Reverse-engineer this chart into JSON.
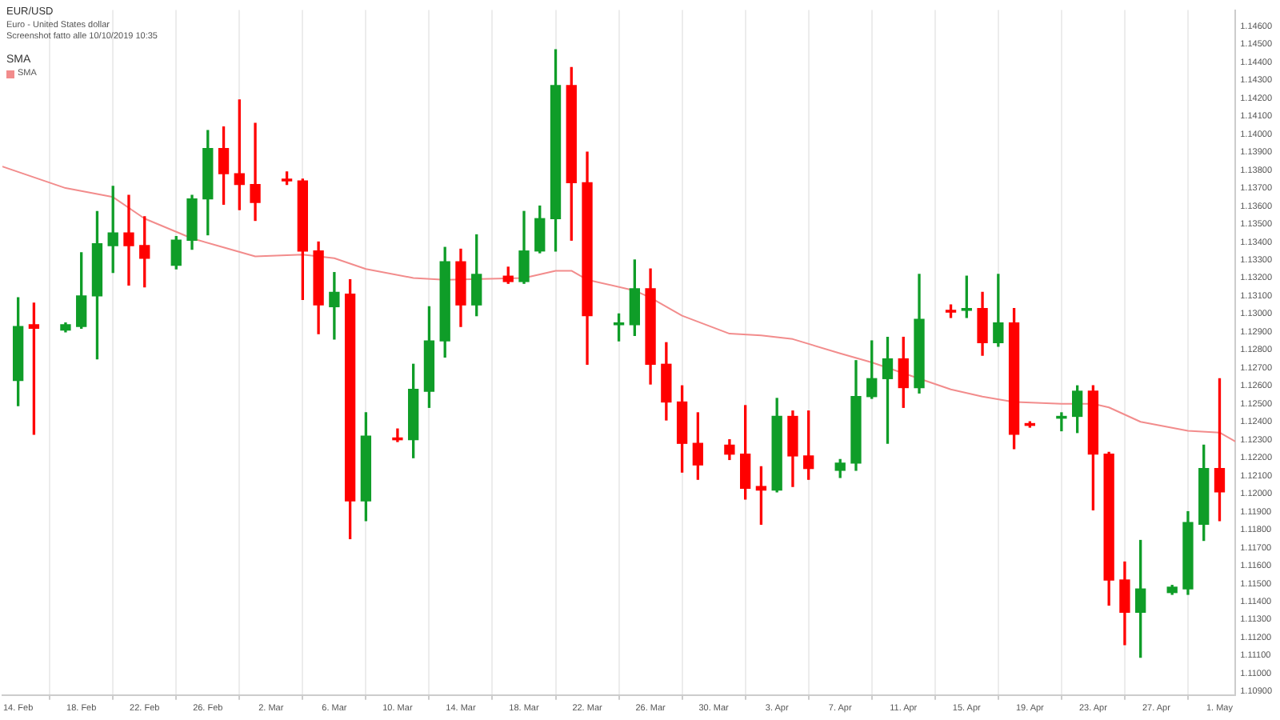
{
  "chart_data": {
    "type": "candlestick",
    "title": "EUR/USD",
    "subtitle": "Euro - United States dollar",
    "annotations": [
      "Screenshot fatto alle 10/10/2019 10:35"
    ],
    "legend_title": "SMA",
    "legend": "top left",
    "grid": "x",
    "marker": "none",
    "xlim": [
      "2019-02-13",
      "2019-05-02"
    ],
    "xticks": [
      {
        "value": "2019-02-14",
        "label": "14. Feb"
      },
      {
        "value": "2019-02-18",
        "label": "18. Feb"
      },
      {
        "value": "2019-02-22",
        "label": "22. Feb"
      },
      {
        "value": "2019-02-26",
        "label": "26. Feb"
      },
      {
        "value": "2019-03-02",
        "label": "2. Mar"
      },
      {
        "value": "2019-03-06",
        "label": "6. Mar"
      },
      {
        "value": "2019-03-10",
        "label": "10. Mar"
      },
      {
        "value": "2019-03-14",
        "label": "14. Mar"
      },
      {
        "value": "2019-03-18",
        "label": "18. Mar"
      },
      {
        "value": "2019-03-22",
        "label": "22. Mar"
      },
      {
        "value": "2019-03-26",
        "label": "26. Mar"
      },
      {
        "value": "2019-03-30",
        "label": "30. Mar"
      },
      {
        "value": "2019-04-03",
        "label": "3. Apr"
      },
      {
        "value": "2019-04-07",
        "label": "7. Apr"
      },
      {
        "value": "2019-04-11",
        "label": "11. Apr"
      },
      {
        "value": "2019-04-15",
        "label": "15. Apr"
      },
      {
        "value": "2019-04-19",
        "label": "19. Apr"
      },
      {
        "value": "2019-04-23",
        "label": "23. Apr"
      },
      {
        "value": "2019-04-27",
        "label": "27. Apr"
      },
      {
        "value": "2019-05-01",
        "label": "1. May"
      }
    ],
    "ylim": [
      1.1088,
      1.1469
    ],
    "yticks": [
      {
        "value": 1.109,
        "label": "1.10900"
      },
      {
        "value": 1.11,
        "label": "1.11000"
      },
      {
        "value": 1.111,
        "label": "1.11100"
      },
      {
        "value": 1.112,
        "label": "1.11200"
      },
      {
        "value": 1.113,
        "label": "1.11300"
      },
      {
        "value": 1.114,
        "label": "1.11400"
      },
      {
        "value": 1.115,
        "label": "1.11500"
      },
      {
        "value": 1.116,
        "label": "1.11600"
      },
      {
        "value": 1.117,
        "label": "1.11700"
      },
      {
        "value": 1.118,
        "label": "1.11800"
      },
      {
        "value": 1.119,
        "label": "1.11900"
      },
      {
        "value": 1.12,
        "label": "1.12000"
      },
      {
        "value": 1.121,
        "label": "1.12100"
      },
      {
        "value": 1.122,
        "label": "1.12200"
      },
      {
        "value": 1.123,
        "label": "1.12300"
      },
      {
        "value": 1.124,
        "label": "1.12400"
      },
      {
        "value": 1.125,
        "label": "1.12500"
      },
      {
        "value": 1.126,
        "label": "1.12600"
      },
      {
        "value": 1.127,
        "label": "1.12700"
      },
      {
        "value": 1.128,
        "label": "1.12800"
      },
      {
        "value": 1.129,
        "label": "1.12900"
      },
      {
        "value": 1.13,
        "label": "1.13000"
      },
      {
        "value": 1.131,
        "label": "1.13100"
      },
      {
        "value": 1.132,
        "label": "1.13200"
      },
      {
        "value": 1.133,
        "label": "1.13300"
      },
      {
        "value": 1.134,
        "label": "1.13400"
      },
      {
        "value": 1.135,
        "label": "1.13500"
      },
      {
        "value": 1.136,
        "label": "1.13600"
      },
      {
        "value": 1.137,
        "label": "1.13700"
      },
      {
        "value": 1.138,
        "label": "1.13800"
      },
      {
        "value": 1.139,
        "label": "1.13900"
      },
      {
        "value": 1.14,
        "label": "1.14000"
      },
      {
        "value": 1.141,
        "label": "1.14100"
      },
      {
        "value": 1.142,
        "label": "1.14200"
      },
      {
        "value": 1.143,
        "label": "1.14300"
      },
      {
        "value": 1.144,
        "label": "1.14400"
      },
      {
        "value": 1.145,
        "label": "1.14500"
      },
      {
        "value": 1.146,
        "label": "1.14600"
      }
    ],
    "series": [
      {
        "type": "line",
        "name": "SMA",
        "color": "#f28c8c",
        "x": [
          "2019-02-13",
          "2019-02-17",
          "2019-02-20",
          "2019-02-22",
          "2019-02-25",
          "2019-02-27",
          "2019-03-01",
          "2019-03-04",
          "2019-03-06",
          "2019-03-08",
          "2019-03-11",
          "2019-03-13",
          "2019-03-18",
          "2019-03-20",
          "2019-03-21",
          "2019-03-22",
          "2019-03-25",
          "2019-03-26",
          "2019-03-28",
          "2019-03-31",
          "2019-04-02",
          "2019-04-04",
          "2019-04-07",
          "2019-04-09",
          "2019-04-11",
          "2019-04-14",
          "2019-04-16",
          "2019-04-18",
          "2019-04-21",
          "2019-04-23",
          "2019-04-24",
          "2019-04-26",
          "2019-04-29",
          "2019-05-01",
          "2019-05-02"
        ],
        "values": [
          1.1382,
          1.137,
          1.1365,
          1.1353,
          1.1342,
          1.1337,
          1.1332,
          1.1333,
          1.1331,
          1.1325,
          1.132,
          1.1319,
          1.132,
          1.1324,
          1.1324,
          1.1319,
          1.1313,
          1.1309,
          1.1299,
          1.1289,
          1.1288,
          1.1286,
          1.1278,
          1.1273,
          1.1267,
          1.1258,
          1.1254,
          1.1251,
          1.125,
          1.125,
          1.1248,
          1.124,
          1.1235,
          1.1234,
          1.1229
        ]
      },
      {
        "x": [
          "2019-02-14",
          "2019-02-15",
          "2019-02-17",
          "2019-02-18",
          "2019-02-19",
          "2019-02-20",
          "2019-02-21",
          "2019-02-22",
          "2019-02-24",
          "2019-02-25",
          "2019-02-26",
          "2019-02-27",
          "2019-02-28",
          "2019-03-01",
          "2019-03-03",
          "2019-03-04",
          "2019-03-05",
          "2019-03-06",
          "2019-03-07",
          "2019-03-08",
          "2019-03-10",
          "2019-03-11",
          "2019-03-12",
          "2019-03-13",
          "2019-03-14",
          "2019-03-15",
          "2019-03-17",
          "2019-03-18",
          "2019-03-19",
          "2019-03-20",
          "2019-03-21",
          "2019-03-22",
          "2019-03-24",
          "2019-03-25",
          "2019-03-26",
          "2019-03-27",
          "2019-03-28",
          "2019-03-29",
          "2019-03-31",
          "2019-04-01",
          "2019-04-02",
          "2019-04-03",
          "2019-04-04",
          "2019-04-05",
          "2019-04-07",
          "2019-04-08",
          "2019-04-09",
          "2019-04-10",
          "2019-04-11",
          "2019-04-12",
          "2019-04-14",
          "2019-04-15",
          "2019-04-16",
          "2019-04-17",
          "2019-04-18",
          "2019-04-19",
          "2019-04-21",
          "2019-04-22",
          "2019-04-23",
          "2019-04-24",
          "2019-04-25",
          "2019-04-26",
          "2019-04-28",
          "2019-04-29",
          "2019-04-30",
          "2019-05-01"
        ],
        "ohlc": [
          [
            1.1263,
            1.1309,
            1.1249,
            1.1293
          ],
          [
            1.1294,
            1.1306,
            1.1233,
            1.1292
          ],
          [
            1.1291,
            1.1295,
            1.129,
            1.1294
          ],
          [
            1.1293,
            1.1334,
            1.1292,
            1.131
          ],
          [
            1.131,
            1.1357,
            1.1275,
            1.1339
          ],
          [
            1.1338,
            1.1371,
            1.1323,
            1.1345
          ],
          [
            1.1345,
            1.1366,
            1.1316,
            1.1338
          ],
          [
            1.1338,
            1.1354,
            1.1315,
            1.1331
          ],
          [
            1.1327,
            1.1343,
            1.1325,
            1.1341
          ],
          [
            1.1341,
            1.1366,
            1.1336,
            1.1364
          ],
          [
            1.1364,
            1.1402,
            1.1344,
            1.1392
          ],
          [
            1.1392,
            1.1404,
            1.1361,
            1.1378
          ],
          [
            1.1378,
            1.1419,
            1.1358,
            1.1372
          ],
          [
            1.1372,
            1.1406,
            1.1352,
            1.1362
          ],
          [
            1.1375,
            1.1379,
            1.1372,
            1.1374
          ],
          [
            1.1374,
            1.1375,
            1.1308,
            1.1335
          ],
          [
            1.1335,
            1.134,
            1.1289,
            1.1305
          ],
          [
            1.1304,
            1.1323,
            1.1286,
            1.1312
          ],
          [
            1.1311,
            1.1319,
            1.1175,
            1.1196
          ],
          [
            1.1196,
            1.1245,
            1.1185,
            1.1232
          ],
          [
            1.1231,
            1.1236,
            1.1229,
            1.123
          ],
          [
            1.123,
            1.1272,
            1.122,
            1.1258
          ],
          [
            1.1257,
            1.1304,
            1.1248,
            1.1285
          ],
          [
            1.1285,
            1.1337,
            1.1276,
            1.1329
          ],
          [
            1.1329,
            1.1336,
            1.1293,
            1.1305
          ],
          [
            1.1305,
            1.1344,
            1.1299,
            1.1322
          ],
          [
            1.1321,
            1.1326,
            1.1317,
            1.1318
          ],
          [
            1.1318,
            1.1357,
            1.1317,
            1.1335
          ],
          [
            1.1335,
            1.136,
            1.1334,
            1.1353
          ],
          [
            1.1353,
            1.1447,
            1.1335,
            1.1427
          ],
          [
            1.1427,
            1.1437,
            1.1341,
            1.1373
          ],
          [
            1.1373,
            1.139,
            1.1272,
            1.1299
          ],
          [
            1.1294,
            1.13,
            1.1285,
            1.1295
          ],
          [
            1.1294,
            1.133,
            1.1288,
            1.1314
          ],
          [
            1.1314,
            1.1325,
            1.1261,
            1.1272
          ],
          [
            1.1272,
            1.1284,
            1.1241,
            1.1251
          ],
          [
            1.1251,
            1.126,
            1.1212,
            1.1228
          ],
          [
            1.1228,
            1.1245,
            1.1208,
            1.1216
          ],
          [
            1.1227,
            1.123,
            1.1219,
            1.1222
          ],
          [
            1.1222,
            1.1249,
            1.1197,
            1.1203
          ],
          [
            1.1204,
            1.1215,
            1.1183,
            1.1202
          ],
          [
            1.1202,
            1.1253,
            1.1201,
            1.1243
          ],
          [
            1.1243,
            1.1246,
            1.1204,
            1.1221
          ],
          [
            1.1221,
            1.1246,
            1.1208,
            1.1214
          ],
          [
            1.1213,
            1.1219,
            1.1209,
            1.1217
          ],
          [
            1.1217,
            1.1274,
            1.1213,
            1.1254
          ],
          [
            1.1254,
            1.1285,
            1.1253,
            1.1264
          ],
          [
            1.1264,
            1.1287,
            1.1228,
            1.1275
          ],
          [
            1.1275,
            1.1287,
            1.1248,
            1.1259
          ],
          [
            1.1259,
            1.1322,
            1.1256,
            1.1297
          ],
          [
            1.1302,
            1.1305,
            1.1298,
            1.1301
          ],
          [
            1.1302,
            1.1321,
            1.1298,
            1.1303
          ],
          [
            1.1303,
            1.1312,
            1.1277,
            1.1284
          ],
          [
            1.1284,
            1.1322,
            1.1282,
            1.1295
          ],
          [
            1.1295,
            1.1303,
            1.1225,
            1.1233
          ],
          [
            1.1239,
            1.124,
            1.1237,
            1.1238
          ],
          [
            1.1242,
            1.1245,
            1.1235,
            1.1243
          ],
          [
            1.1243,
            1.126,
            1.1234,
            1.1257
          ],
          [
            1.1257,
            1.126,
            1.1191,
            1.1222
          ],
          [
            1.1222,
            1.1223,
            1.1138,
            1.1152
          ],
          [
            1.1152,
            1.1162,
            1.1116,
            1.1134
          ],
          [
            1.1134,
            1.1174,
            1.1109,
            1.1147
          ],
          [
            1.1145,
            1.1149,
            1.1144,
            1.1148
          ],
          [
            1.1147,
            1.119,
            1.1144,
            1.1184
          ],
          [
            1.1183,
            1.1227,
            1.1174,
            1.1214
          ],
          [
            1.1214,
            1.1264,
            1.1185,
            1.1201
          ]
        ],
        "colors": [
          "#0f9d28",
          "#ff0000",
          "#0f9d28",
          "#0f9d28",
          "#0f9d28",
          "#0f9d28",
          "#ff0000",
          "#ff0000",
          "#0f9d28",
          "#0f9d28",
          "#0f9d28",
          "#ff0000",
          "#ff0000",
          "#ff0000",
          "#ff0000",
          "#ff0000",
          "#ff0000",
          "#0f9d28",
          "#ff0000",
          "#0f9d28",
          "#ff0000",
          "#0f9d28",
          "#0f9d28",
          "#0f9d28",
          "#ff0000",
          "#0f9d28",
          "#ff0000",
          "#0f9d28",
          "#0f9d28",
          "#0f9d28",
          "#ff0000",
          "#ff0000",
          "#0f9d28",
          "#0f9d28",
          "#ff0000",
          "#ff0000",
          "#ff0000",
          "#ff0000",
          "#ff0000",
          "#ff0000",
          "#ff0000",
          "#0f9d28",
          "#ff0000",
          "#ff0000",
          "#0f9d28",
          "#0f9d28",
          "#0f9d28",
          "#0f9d28",
          "#ff0000",
          "#0f9d28",
          "#ff0000",
          "#0f9d28",
          "#ff0000",
          "#0f9d28",
          "#ff0000",
          "#ff0000",
          "#0f9d28",
          "#0f9d28",
          "#ff0000",
          "#ff0000",
          "#ff0000",
          "#0f9d28",
          "#0f9d28",
          "#0f9d28",
          "#0f9d28",
          "#ff0000"
        ]
      }
    ]
  }
}
